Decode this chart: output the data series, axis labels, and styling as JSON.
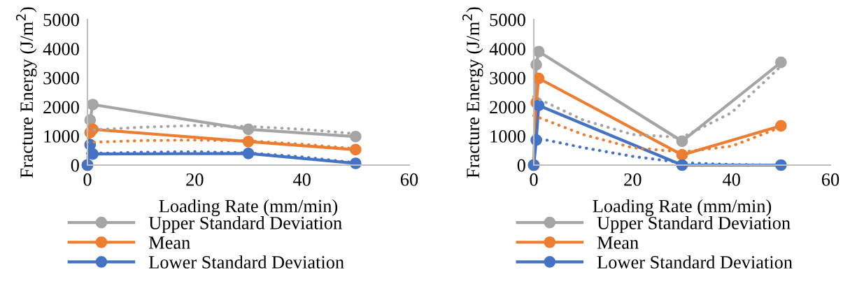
{
  "chart_data": [
    {
      "type": "line",
      "xlabel": "Loading Rate (mm/min)",
      "ylabel": "Fracture Energy (J/m$^{2}$)",
      "xlim": [
        0,
        60
      ],
      "xticks": [
        0,
        20,
        40,
        60
      ],
      "ylim": [
        0,
        5000
      ],
      "yticks": [
        0,
        1000,
        2000,
        3000,
        4000,
        5000
      ],
      "grid": false,
      "legend": "bottom",
      "marker": "circle",
      "series": [
        {
          "name": "Upper Standard Deviation",
          "color": "#a5a5a5",
          "x": [
            0,
            0.5,
            1,
            30,
            50
          ],
          "values": [
            0,
            1550,
            2080,
            1230,
            980
          ]
        },
        {
          "name": "Mean",
          "color": "#ed7d31",
          "x": [
            0,
            0.5,
            1,
            30,
            50
          ],
          "values": [
            0,
            1120,
            1230,
            810,
            530
          ]
        },
        {
          "name": "Lower Standard Deviation",
          "color": "#4472c4",
          "x": [
            0,
            0.5,
            1,
            30,
            50
          ],
          "values": [
            0,
            700,
            380,
            400,
            60
          ]
        },
        {
          "color": "#a5a5a5",
          "line_style": "dotted",
          "marker": "none",
          "x": [
            0,
            10,
            20,
            30,
            40,
            50
          ],
          "values": [
            1200,
            1300,
            1360,
            1330,
            1230,
            1080
          ]
        },
        {
          "color": "#ed7d31",
          "line_style": "dotted",
          "marker": "none",
          "x": [
            0,
            10,
            20,
            30,
            40,
            50
          ],
          "values": [
            780,
            840,
            860,
            830,
            720,
            560
          ]
        },
        {
          "color": "#4472c4",
          "line_style": "dotted",
          "marker": "none",
          "x": [
            0,
            10,
            20,
            30,
            40,
            50
          ],
          "values": [
            400,
            440,
            460,
            420,
            280,
            80
          ]
        }
      ]
    },
    {
      "type": "line",
      "xlabel": "Loading Rate (mm/min)",
      "ylabel": "Fracture Energy (J/m$^{2}$)",
      "xlim": [
        0,
        60
      ],
      "xticks": [
        0,
        20,
        40,
        60
      ],
      "ylim": [
        0,
        5000
      ],
      "yticks": [
        0,
        1000,
        2000,
        3000,
        4000,
        5000
      ],
      "grid": false,
      "legend": "bottom",
      "marker": "circle",
      "series": [
        {
          "name": "Upper Standard Deviation",
          "color": "#a5a5a5",
          "x": [
            0,
            0.5,
            1,
            30,
            50
          ],
          "values": [
            0,
            3450,
            3900,
            820,
            3530
          ]
        },
        {
          "name": "Mean",
          "color": "#ed7d31",
          "x": [
            0,
            0.5,
            1,
            30,
            50
          ],
          "values": [
            0,
            2150,
            2980,
            350,
            1350
          ]
        },
        {
          "name": "Lower Standard Deviation",
          "color": "#4472c4",
          "x": [
            0,
            0.5,
            1,
            30,
            50
          ],
          "values": [
            0,
            860,
            2050,
            0,
            0
          ]
        },
        {
          "color": "#a5a5a5",
          "line_style": "dotted",
          "marker": "none",
          "x": [
            0,
            10,
            20,
            30,
            40,
            50
          ],
          "values": [
            2350,
            1550,
            1050,
            950,
            1800,
            3400
          ]
        },
        {
          "color": "#ed7d31",
          "line_style": "dotted",
          "marker": "none",
          "x": [
            0,
            10,
            20,
            30,
            40,
            50
          ],
          "values": [
            1700,
            1050,
            600,
            450,
            650,
            1300
          ]
        },
        {
          "color": "#4472c4",
          "line_style": "dotted",
          "marker": "none",
          "x": [
            0,
            10,
            20,
            30,
            40,
            50
          ],
          "values": [
            950,
            600,
            300,
            80,
            20,
            0
          ]
        }
      ]
    }
  ]
}
